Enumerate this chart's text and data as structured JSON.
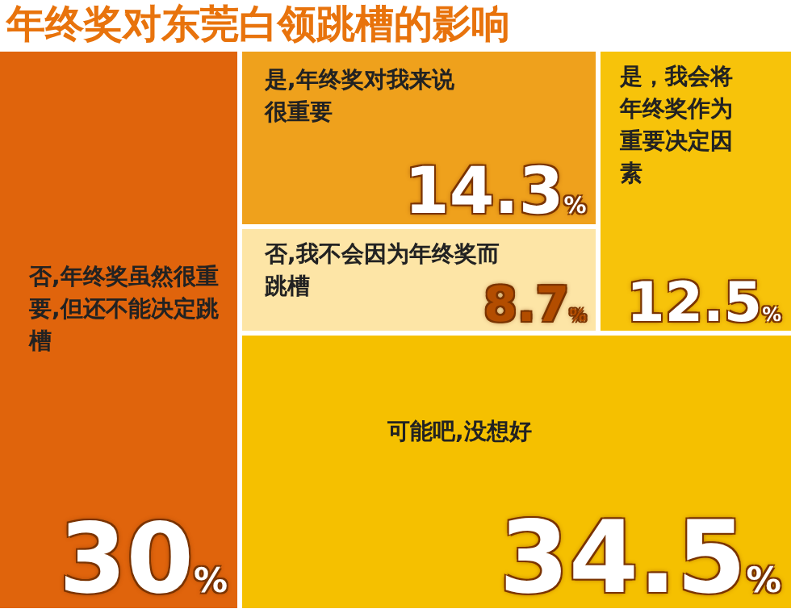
{
  "chart_data": {
    "type": "other",
    "title": "年终奖对东莞白领跳槽的影响",
    "categories": [
      "否,年终奖虽然很重要,但还不能决定跳槽",
      "是,年终奖对我来说很重要",
      "否,我不会因为年终奖而跳槽",
      "是，我会将年终奖作为重要决定因素",
      "可能吧,没想好"
    ],
    "values": [
      30,
      14.3,
      8.7,
      12.5,
      34.5
    ],
    "value_labels": [
      "30$_{%}$",
      "14.3$_{%}$",
      "8.7$_{%}$",
      "12.5$_{%}$",
      "34.5$_{%}$"
    ],
    "colors": [
      "#e0640c",
      "#efa11c",
      "#fde5a6",
      "#f7c30a",
      "#f5c000"
    ]
  }
}
